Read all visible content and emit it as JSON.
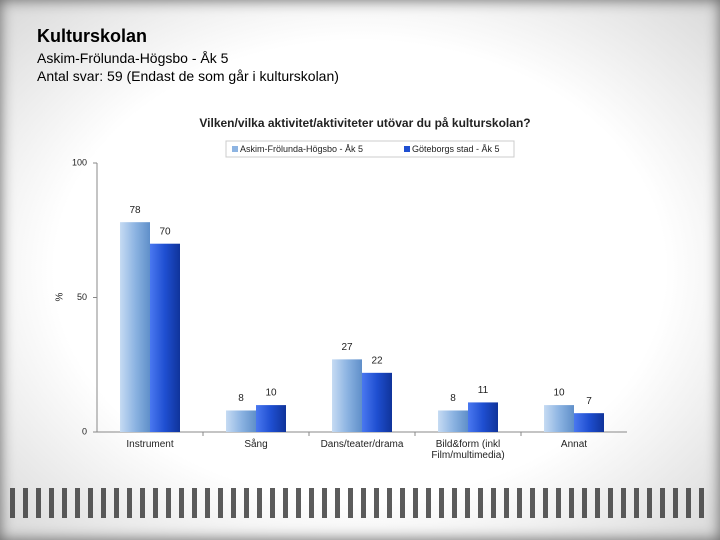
{
  "header": {
    "title": "Kulturskolan",
    "subtitle": "Askim-Frölunda-Högsbo - Åk 5",
    "note": "Antal svar: 59 (Endast de som går i kulturskolan)"
  },
  "chart_data": {
    "type": "bar",
    "title": "Vilken/vilka aktivitet/aktiviteter utövar du på kulturskolan?",
    "y_label": "%",
    "categories": [
      "Instrument",
      "Sång",
      "Dans/teater/drama",
      "Bild&form (inkl Film/multimedia)",
      "Annat"
    ],
    "series": [
      {
        "name": "Askim-Frölunda-Högsbo - Åk 5",
        "color": "#8db4e2",
        "values": [
          78,
          8,
          27,
          8,
          10
        ]
      },
      {
        "name": "Göteborgs stad - Åk 5",
        "color": "#1f4fd1",
        "values": [
          70,
          10,
          22,
          11,
          7
        ]
      }
    ],
    "ylim": [
      0,
      100
    ],
    "yticks": [
      0,
      50,
      100
    ],
    "legend": "top"
  }
}
